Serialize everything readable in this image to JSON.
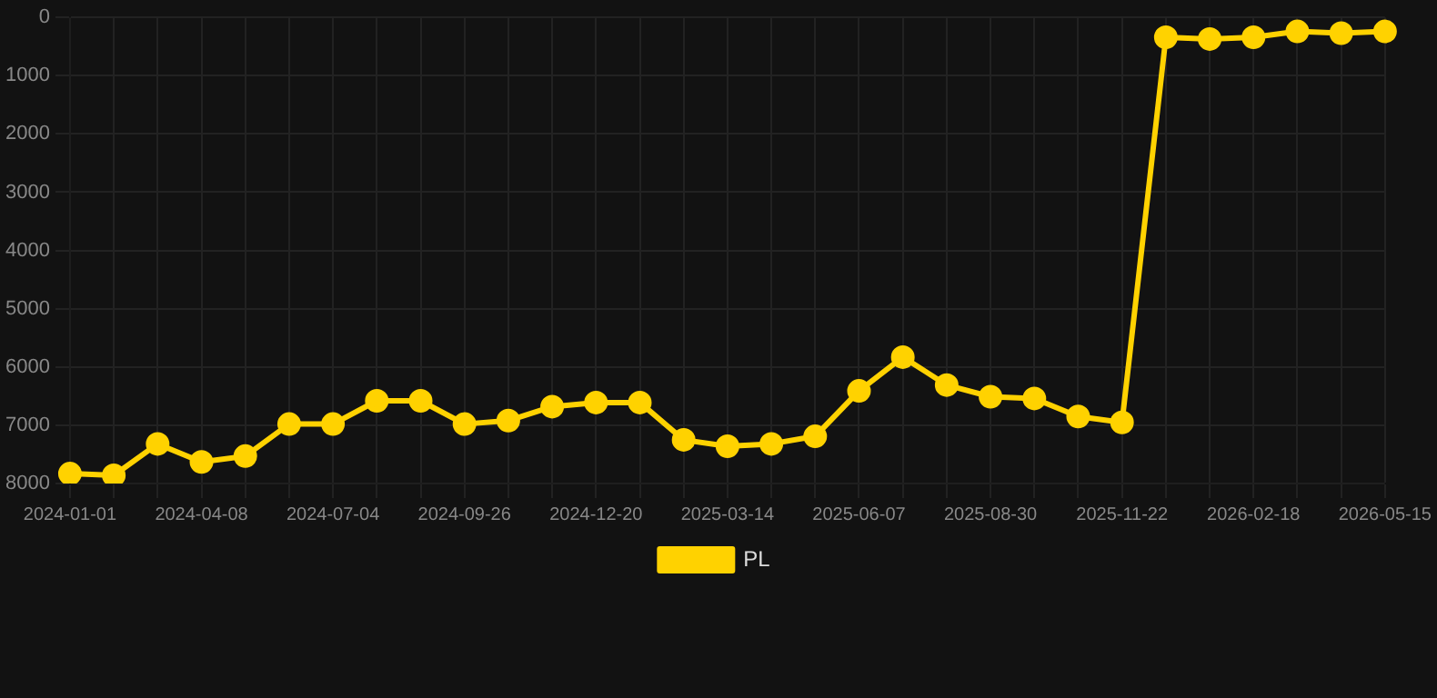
{
  "chart_data": {
    "type": "line",
    "categories": [
      "2024-01-01",
      null,
      null,
      "2024-04-08",
      null,
      null,
      "2024-07-04",
      null,
      null,
      "2024-09-26",
      null,
      null,
      "2024-12-20",
      null,
      null,
      "2025-03-14",
      null,
      null,
      "2025-06-07",
      null,
      null,
      "2025-08-30",
      null,
      null,
      "2025-11-22",
      null,
      null,
      "2026-02-18",
      null,
      null,
      "2026-05-15"
    ],
    "series": [
      {
        "name": "PL",
        "color": "#ffd200",
        "values": [
          7830,
          7860,
          7320,
          7630,
          7530,
          6980,
          6980,
          6580,
          6580,
          6980,
          6920,
          6680,
          6610,
          6610,
          7250,
          7360,
          7320,
          7190,
          6410,
          5830,
          6310,
          6510,
          6540,
          6850,
          6950,
          340,
          370,
          340,
          240,
          270,
          240
        ]
      }
    ],
    "ylim": [
      8000,
      0
    ],
    "yticks": [
      0,
      1000,
      2000,
      3000,
      4000,
      5000,
      6000,
      7000,
      8000
    ],
    "grid": true,
    "legend": "bottom",
    "marker": "circle",
    "line_style": "solid"
  }
}
